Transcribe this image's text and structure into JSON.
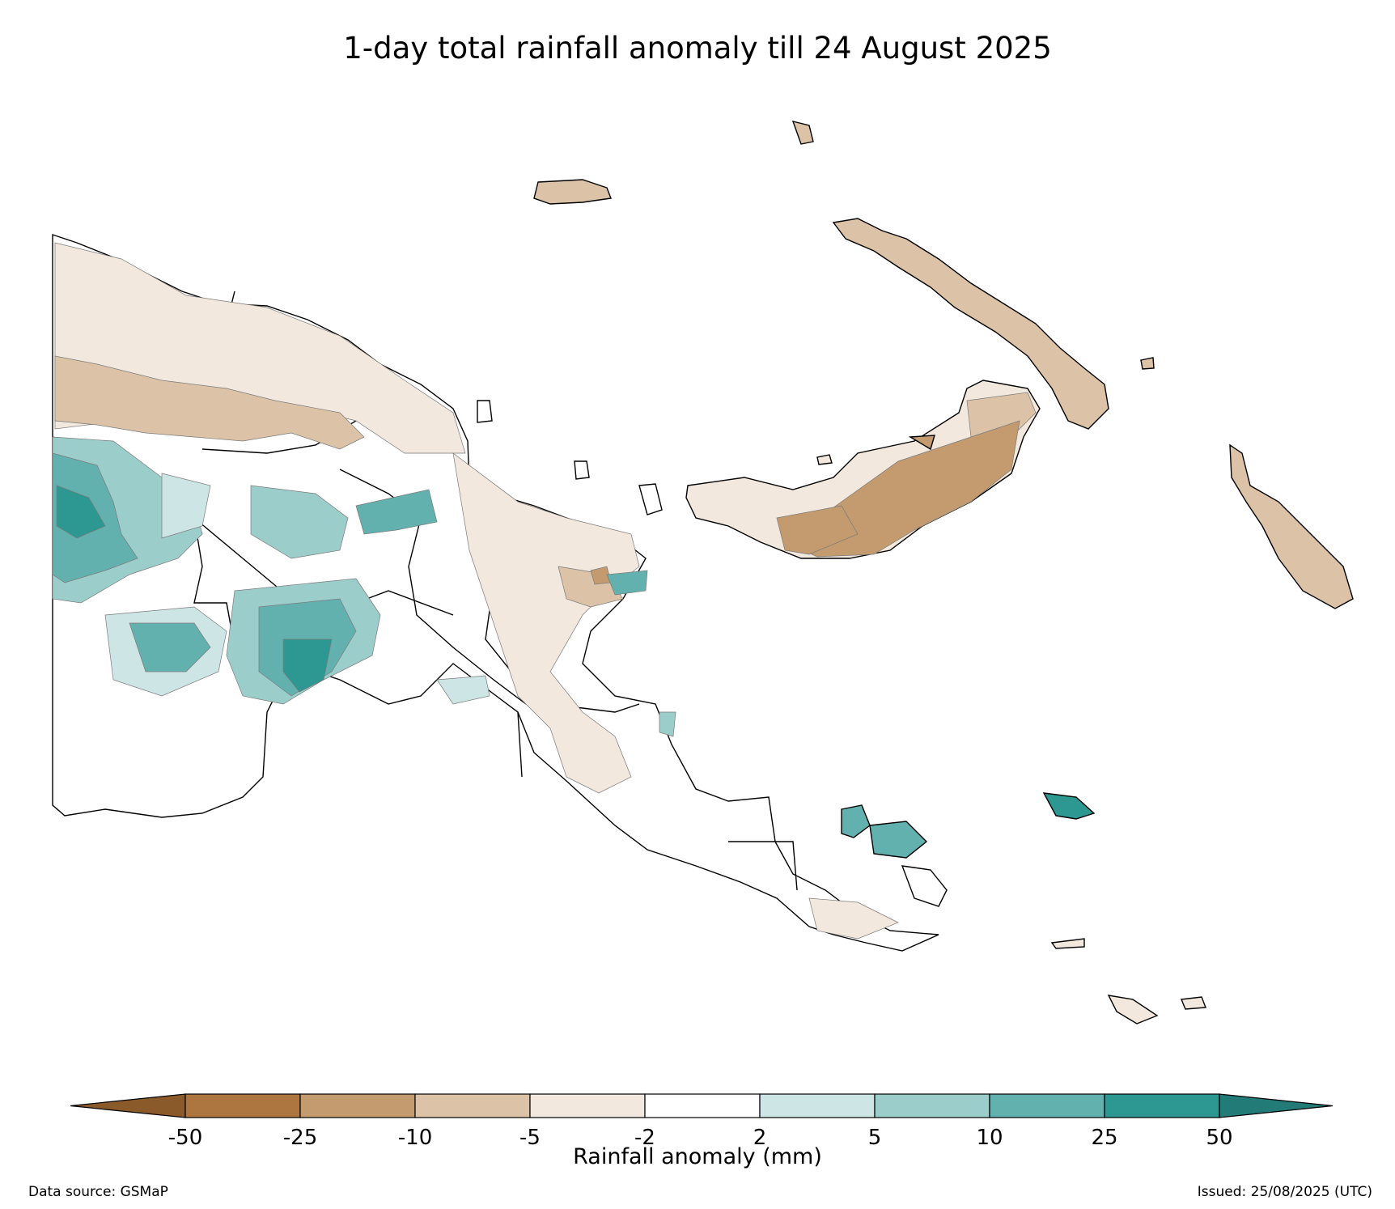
{
  "title": "1-day total rainfall anomaly till 24 August 2025",
  "colorbar": {
    "label": "Rainfall anomaly (mm)",
    "ticks": [
      "-50",
      "-25",
      "-10",
      "-5",
      "-2",
      "2",
      "5",
      "10",
      "25",
      "50"
    ],
    "colors": [
      "#8b5a2b",
      "#ad7540",
      "#c39b6e",
      "#dcc3a8",
      "#f2e8de",
      "#ffffff",
      "#cde6e5",
      "#9bcdcb",
      "#63b1ae",
      "#2d9891",
      "#237b77"
    ]
  },
  "footer": {
    "source": "Data source: GSMaP",
    "issued": "Issued: 25/08/2025 (UTC)"
  }
}
